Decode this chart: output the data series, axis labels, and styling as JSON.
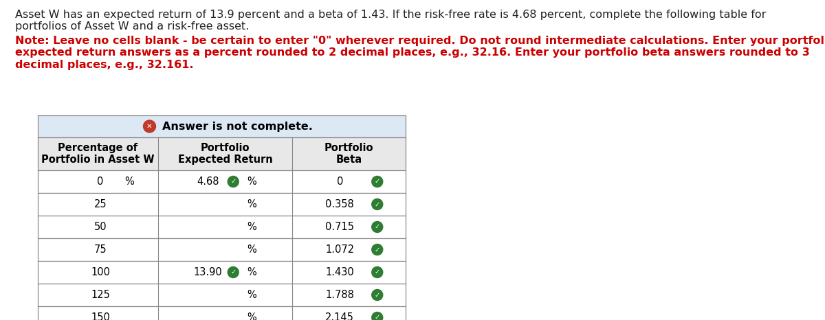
{
  "title_text": "Asset W has an expected return of 13.9 percent and a beta of 1.43. If the risk-free rate is 4.68 percent, complete the following table for\nportfolios of Asset W and a risk-free asset.",
  "note_text": "Note: Leave no cells blank - be certain to enter \"0\" wherever required. Do not round intermediate calculations. Enter your portfolio\nexpected return answers as a percent rounded to 2 decimal places, e.g., 32.16. Enter your portfolio beta answers rounded to 3\ndecimal places, e.g., 32.161.",
  "col_headers": [
    "Percentage of\nPortfolio in Asset W",
    "Portfolio\nExpected Return",
    "Portfolio\nBeta"
  ],
  "pct_w": [
    "0",
    "25",
    "50",
    "75",
    "100",
    "125",
    "150"
  ],
  "expected_returns": [
    "4.68",
    "",
    "",
    "",
    "13.90",
    "",
    ""
  ],
  "expected_returns_show_check": [
    true,
    false,
    false,
    false,
    true,
    false,
    false
  ],
  "betas": [
    "0",
    "0.358",
    "0.715",
    "1.072",
    "1.430",
    "1.788",
    "2.145"
  ],
  "betas_show_check": [
    true,
    true,
    true,
    true,
    true,
    true,
    true
  ],
  "pct_sign_col0": [
    true,
    false,
    false,
    false,
    false,
    false,
    false
  ],
  "bg_color": "#ffffff",
  "banner_bg": "#dce9f5",
  "header_bg": "#e8e8e8",
  "table_border_color": "#888888",
  "check_color": "#2e7d32",
  "x_color": "#c0392b",
  "note_color": "#cc0000",
  "title_color": "#222222",
  "title_fontsize": 11.5,
  "note_fontsize": 11.5,
  "banner_fontsize": 11.5,
  "header_fontsize": 10.5,
  "cell_fontsize": 10.5
}
